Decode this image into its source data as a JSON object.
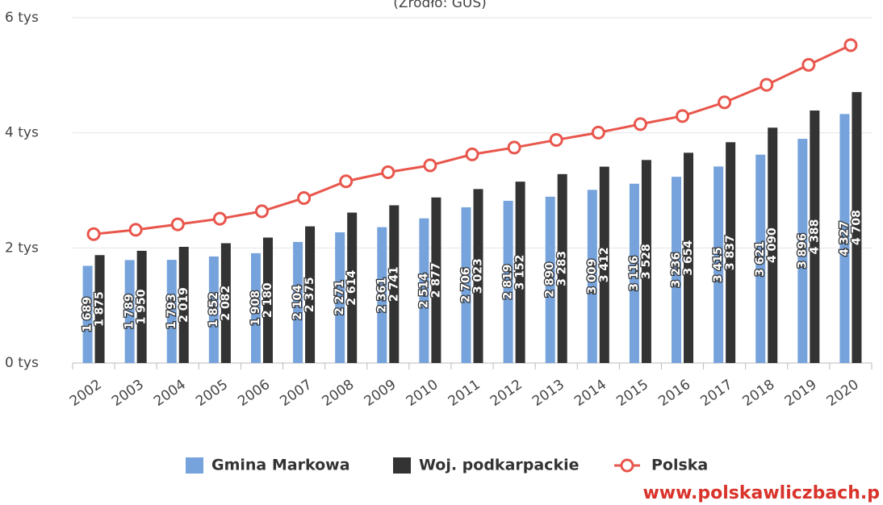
{
  "chart_data": {
    "type": "bar",
    "subtitle": "(Źródło: GUS)",
    "annotation": "www.polskawliczbach.p",
    "categories": [
      "2002",
      "2003",
      "2004",
      "2005",
      "2006",
      "2007",
      "2008",
      "2009",
      "2010",
      "2011",
      "2012",
      "2013",
      "2014",
      "2015",
      "2016",
      "2017",
      "2018",
      "2019",
      "2020"
    ],
    "series": [
      {
        "name": "Gmina Markowa",
        "type": "bar",
        "color": "#76a3dc",
        "values": [
          1689,
          1789,
          1793,
          1852,
          1908,
          2104,
          2271,
          2361,
          2514,
          2706,
          2819,
          2890,
          3009,
          3116,
          3236,
          3415,
          3621,
          3896,
          4327
        ],
        "value_labels": [
          "1 689",
          "1 789",
          "1 793",
          "1 852",
          "1 908",
          "2 104",
          "2 271",
          "2 361",
          "2 514",
          "2 706",
          "2 819",
          "2 890",
          "3 009",
          "3 116",
          "3 236",
          "3 415",
          "3 621",
          "3 896",
          "4 327"
        ]
      },
      {
        "name": "Woj. podkarpackie",
        "type": "bar",
        "color": "#333333",
        "values": [
          1875,
          1950,
          2019,
          2082,
          2180,
          2375,
          2614,
          2741,
          2877,
          3023,
          3152,
          3283,
          3412,
          3528,
          3654,
          3837,
          4090,
          4388,
          4708
        ],
        "value_labels": [
          "1 875",
          "1 950",
          "2 019",
          "2 082",
          "2 180",
          "2 375",
          "2 614",
          "2 741",
          "2 877",
          "3 023",
          "3 152",
          "3 283",
          "3 412",
          "3 528",
          "3 654",
          "3 837",
          "4 090",
          "4 388",
          "4 708"
        ]
      },
      {
        "name": "Polska",
        "type": "line",
        "color": "#e8564c",
        "values": [
          2239,
          2315,
          2410,
          2507,
          2637,
          2867,
          3158,
          3315,
          3435,
          3626,
          3744,
          3877,
          4004,
          4151,
          4292,
          4530,
          4834,
          5182,
          5523
        ]
      }
    ],
    "ylim": [
      0,
      6000
    ],
    "yticks": [
      {
        "value": 0,
        "label": "0 tys"
      },
      {
        "value": 2000,
        "label": "2 tys"
      },
      {
        "value": 4000,
        "label": "4 tys"
      },
      {
        "value": 6000,
        "label": "6 tys"
      }
    ],
    "grid": true
  }
}
